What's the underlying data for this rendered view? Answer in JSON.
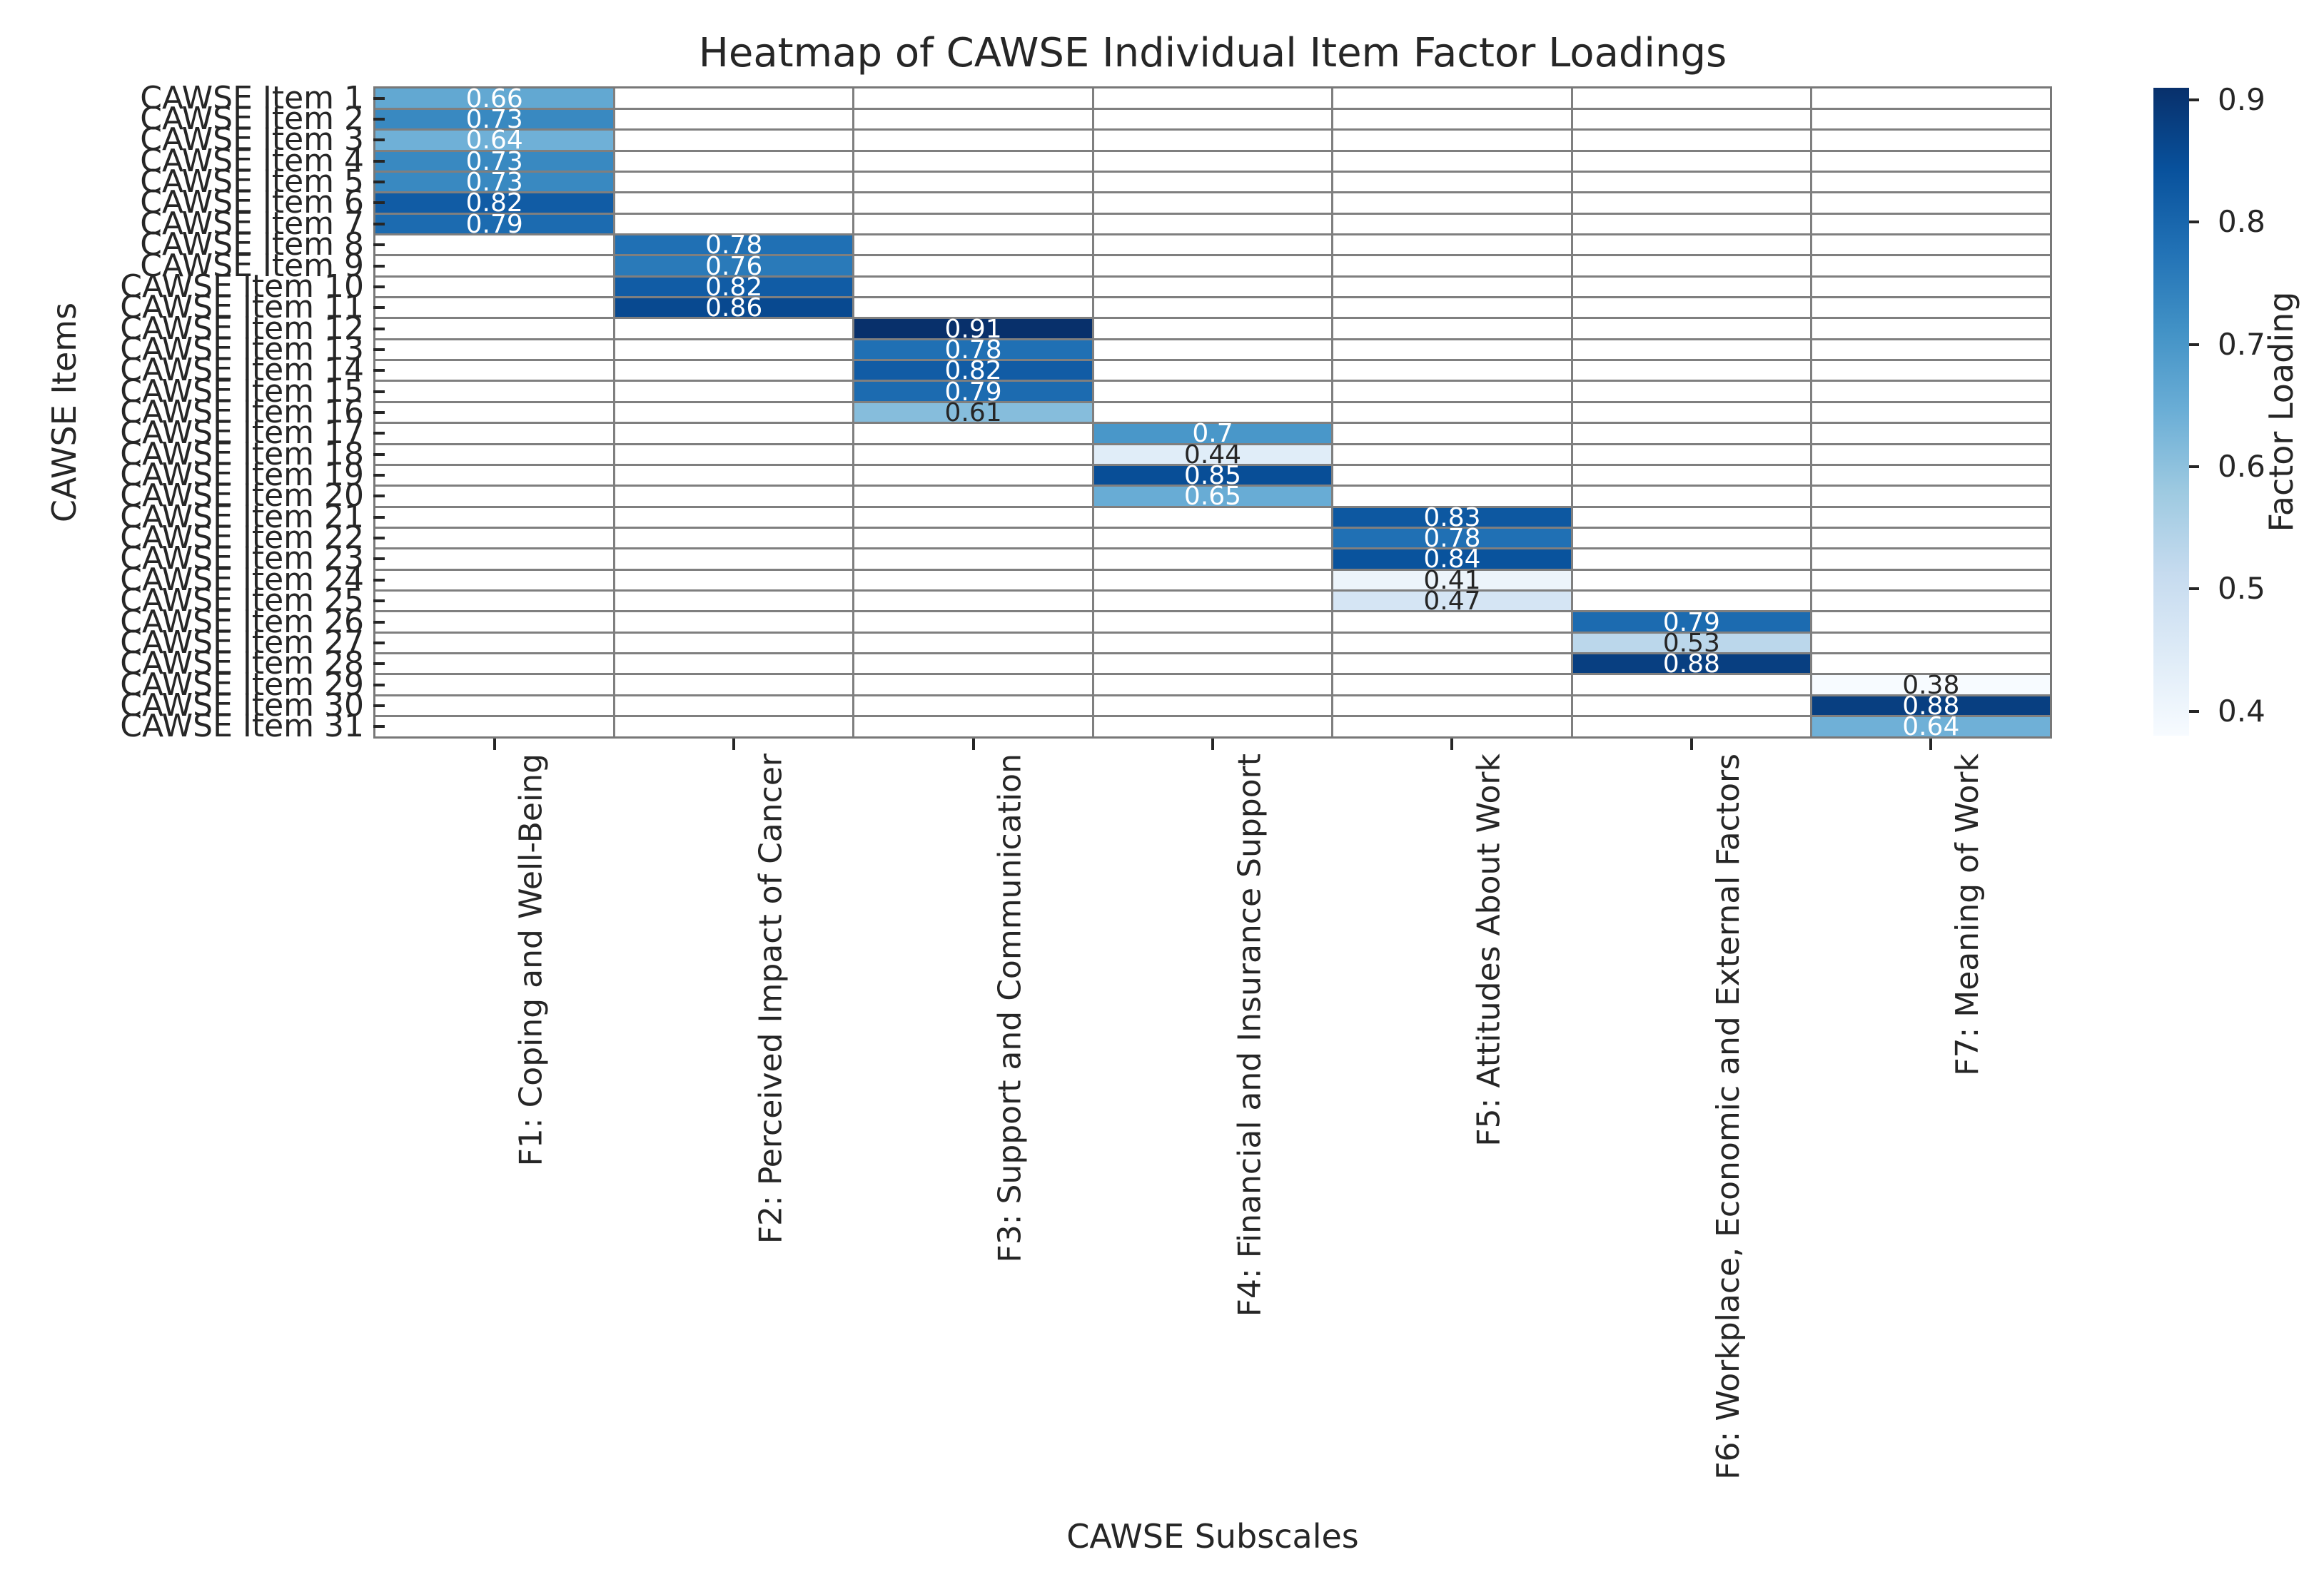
{
  "chart_data": {
    "type": "heatmap",
    "title": "Heatmap of CAWSE Individual Item Factor Loadings",
    "xlabel": "CAWSE Subscales",
    "ylabel": "CAWSE Items",
    "colormap": "Blues",
    "empty_cell_color": "#ffffff",
    "vmin": 0.38,
    "vmax": 0.91,
    "grid": true,
    "columns": [
      "F1: Coping and Well-Being",
      "F2: Perceived Impact of Cancer",
      "F3: Support and Communication",
      "F4: Financial and Insurance Support",
      "F5: Attitudes About Work",
      "F6: Workplace, Economic and External Factors",
      "F7: Meaning of Work"
    ],
    "rows": [
      "CAWSE Item 1",
      "CAWSE Item 2",
      "CAWSE Item 3",
      "CAWSE Item 4",
      "CAWSE Item 5",
      "CAWSE Item 6",
      "CAWSE Item 7",
      "CAWSE Item 8",
      "CAWSE Item 9",
      "CAWSE Item 10",
      "CAWSE Item 11",
      "CAWSE Item 12",
      "CAWSE Item 13",
      "CAWSE Item 14",
      "CAWSE Item 15",
      "CAWSE Item 16",
      "CAWSE Item 17",
      "CAWSE Item 18",
      "CAWSE Item 19",
      "CAWSE Item 20",
      "CAWSE Item 21",
      "CAWSE Item 22",
      "CAWSE Item 23",
      "CAWSE Item 24",
      "CAWSE Item 25",
      "CAWSE Item 26",
      "CAWSE Item 27",
      "CAWSE Item 28",
      "CAWSE Item 29",
      "CAWSE Item 30",
      "CAWSE Item 31"
    ],
    "cells": [
      {
        "row": "CAWSE Item 1",
        "col": 0,
        "value": 0.66,
        "text": "0.66"
      },
      {
        "row": "CAWSE Item 2",
        "col": 0,
        "value": 0.73,
        "text": "0.73"
      },
      {
        "row": "CAWSE Item 3",
        "col": 0,
        "value": 0.64,
        "text": "0.64"
      },
      {
        "row": "CAWSE Item 4",
        "col": 0,
        "value": 0.73,
        "text": "0.73"
      },
      {
        "row": "CAWSE Item 5",
        "col": 0,
        "value": 0.73,
        "text": "0.73"
      },
      {
        "row": "CAWSE Item 6",
        "col": 0,
        "value": 0.82,
        "text": "0.82"
      },
      {
        "row": "CAWSE Item 7",
        "col": 0,
        "value": 0.79,
        "text": "0.79"
      },
      {
        "row": "CAWSE Item 8",
        "col": 1,
        "value": 0.78,
        "text": "0.78"
      },
      {
        "row": "CAWSE Item 9",
        "col": 1,
        "value": 0.76,
        "text": "0.76"
      },
      {
        "row": "CAWSE Item 10",
        "col": 1,
        "value": 0.82,
        "text": "0.82"
      },
      {
        "row": "CAWSE Item 11",
        "col": 1,
        "value": 0.86,
        "text": "0.86"
      },
      {
        "row": "CAWSE Item 12",
        "col": 2,
        "value": 0.91,
        "text": "0.91"
      },
      {
        "row": "CAWSE Item 13",
        "col": 2,
        "value": 0.78,
        "text": "0.78"
      },
      {
        "row": "CAWSE Item 14",
        "col": 2,
        "value": 0.82,
        "text": "0.82"
      },
      {
        "row": "CAWSE Item 15",
        "col": 2,
        "value": 0.79,
        "text": "0.79"
      },
      {
        "row": "CAWSE Item 16",
        "col": 2,
        "value": 0.61,
        "text": "0.61"
      },
      {
        "row": "CAWSE Item 17",
        "col": 3,
        "value": 0.7,
        "text": "0.7"
      },
      {
        "row": "CAWSE Item 18",
        "col": 3,
        "value": 0.44,
        "text": "0.44"
      },
      {
        "row": "CAWSE Item 19",
        "col": 3,
        "value": 0.85,
        "text": "0.85"
      },
      {
        "row": "CAWSE Item 20",
        "col": 3,
        "value": 0.65,
        "text": "0.65"
      },
      {
        "row": "CAWSE Item 21",
        "col": 4,
        "value": 0.83,
        "text": "0.83"
      },
      {
        "row": "CAWSE Item 22",
        "col": 4,
        "value": 0.78,
        "text": "0.78"
      },
      {
        "row": "CAWSE Item 23",
        "col": 4,
        "value": 0.84,
        "text": "0.84"
      },
      {
        "row": "CAWSE Item 24",
        "col": 4,
        "value": 0.41,
        "text": "0.41"
      },
      {
        "row": "CAWSE Item 25",
        "col": 4,
        "value": 0.47,
        "text": "0.47"
      },
      {
        "row": "CAWSE Item 26",
        "col": 5,
        "value": 0.79,
        "text": "0.79"
      },
      {
        "row": "CAWSE Item 27",
        "col": 5,
        "value": 0.53,
        "text": "0.53"
      },
      {
        "row": "CAWSE Item 28",
        "col": 5,
        "value": 0.88,
        "text": "0.88"
      },
      {
        "row": "CAWSE Item 29",
        "col": 6,
        "value": 0.38,
        "text": "0.38"
      },
      {
        "row": "CAWSE Item 30",
        "col": 6,
        "value": 0.88,
        "text": "0.88"
      },
      {
        "row": "CAWSE Item 31",
        "col": 6,
        "value": 0.64,
        "text": "0.64"
      }
    ],
    "colorbar": {
      "label": "Factor Loading",
      "ticks": [
        "0.9",
        "0.8",
        "0.7",
        "0.6",
        "0.5",
        "0.4"
      ],
      "tick_values": [
        0.9,
        0.8,
        0.7,
        0.6,
        0.5,
        0.4
      ]
    }
  }
}
